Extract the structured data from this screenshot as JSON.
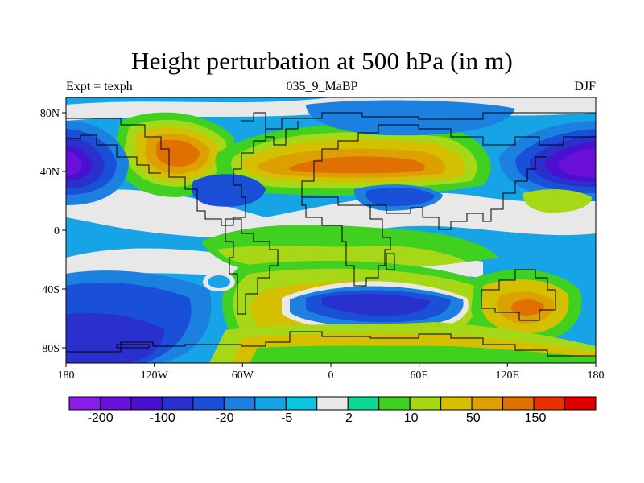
{
  "title": "Height perturbation at 500 hPa (in m)",
  "subtitle_left": "Expt = texph",
  "subtitle_center": "035_9_MaBP",
  "subtitle_right": "DJF",
  "x_ticks": [
    "180",
    "120W",
    "60W",
    "0",
    "60E",
    "120E",
    "180"
  ],
  "y_ticks": [
    "80N",
    "40N",
    "0",
    "40S",
    "80S"
  ],
  "colorbar": {
    "colors": [
      "#8a1ee6",
      "#6a10da",
      "#4a10d0",
      "#2a30cc",
      "#1a4fd8",
      "#1c80e0",
      "#16a4e6",
      "#0cc4dc",
      "#e8e8e8",
      "#10d890",
      "#40d020",
      "#a6d818",
      "#d4c000",
      "#dca000",
      "#e07000",
      "#e83000",
      "#e00000"
    ],
    "labels": [
      "-200",
      "-100",
      "-20",
      "-5",
      "2",
      "10",
      "50",
      "150"
    ]
  }
}
